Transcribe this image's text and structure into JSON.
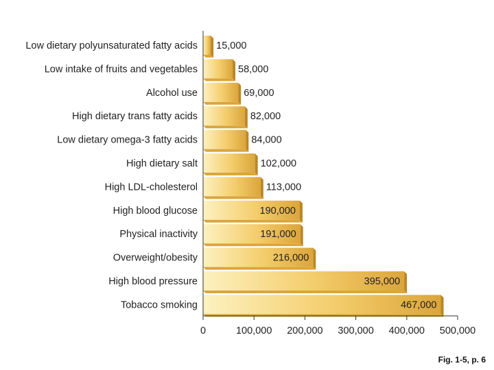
{
  "chart_data": {
    "type": "bar",
    "orientation": "horizontal",
    "categories": [
      "Low dietary polyunsaturated fatty acids",
      "Low intake of fruits and vegetables",
      "Alcohol use",
      "High dietary trans fatty acids",
      "Low dietary omega-3 fatty acids",
      "High dietary salt",
      "High LDL-cholesterol",
      "High blood glucose",
      "Physical inactivity",
      "Overweight/obesity",
      "High blood pressure",
      "Tobacco smoking"
    ],
    "values": [
      15000,
      58000,
      69000,
      82000,
      84000,
      102000,
      113000,
      190000,
      191000,
      216000,
      395000,
      467000
    ],
    "value_labels": [
      "15,000",
      "58,000",
      "69,000",
      "82,000",
      "84,000",
      "102,000",
      "113,000",
      "190,000",
      "191,000",
      "216,000",
      "395,000",
      "467,000"
    ],
    "xlim": [
      0,
      500000
    ],
    "xticks": [
      0,
      100000,
      200000,
      300000,
      400000,
      500000
    ],
    "xtick_labels": [
      "0",
      "100,000",
      "200,000",
      "300,000",
      "400,000",
      "500,000"
    ],
    "title": "",
    "xlabel": "",
    "ylabel": "",
    "grid": false,
    "colors": {
      "bar_light": "#fdf1c0",
      "bar_mid": "#f4cd6c",
      "bar_dark": "#dba53c",
      "bar_shadow": "#b98726",
      "axis": "#333333"
    }
  },
  "caption": "Fig. 1-5, p. 6"
}
